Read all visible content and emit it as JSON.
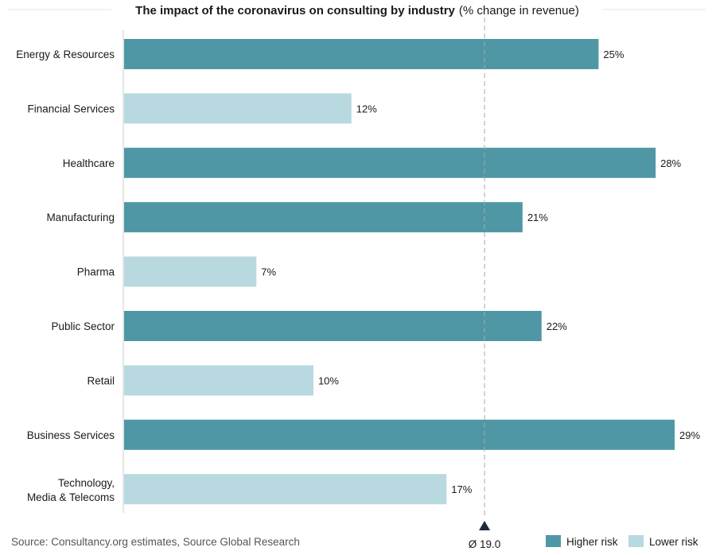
{
  "chart_data": {
    "type": "bar",
    "orientation": "horizontal",
    "title": "The impact of the coronavirus on consulting by industry",
    "subtitle": "(% change in revenue)",
    "categories": [
      "Energy & Resources",
      "Financial Services",
      "Healthcare",
      "Manufacturing",
      "Pharma",
      "Public Sector",
      "Retail",
      "Business Services",
      "Technology, Media & Telecoms"
    ],
    "values": [
      25,
      12,
      28,
      21,
      7,
      22,
      10,
      29,
      17
    ],
    "value_labels": [
      "25%",
      "12%",
      "28%",
      "21%",
      "7%",
      "22%",
      "10%",
      "29%",
      "17%"
    ],
    "risk": [
      "higher",
      "lower",
      "higher",
      "higher",
      "lower",
      "higher",
      "lower",
      "higher",
      "lower"
    ],
    "xlim": [
      0,
      30
    ],
    "average": {
      "value": 19.0,
      "label": "Ø 19.0"
    },
    "legend": {
      "placement": "bottom-right",
      "items": [
        {
          "name": "Higher risk",
          "color": "#4f97a5"
        },
        {
          "name": "Lower risk",
          "color": "#b7d9df"
        }
      ]
    },
    "source": "Source: Consultancy.org estimates, Source Global Research",
    "grid": false
  },
  "colors": {
    "higher": "#4f97a5",
    "lower": "#b7d9df",
    "axis": "#cccccc",
    "avg_line": "#aaaaaa",
    "marker": "#1e2a3a"
  }
}
